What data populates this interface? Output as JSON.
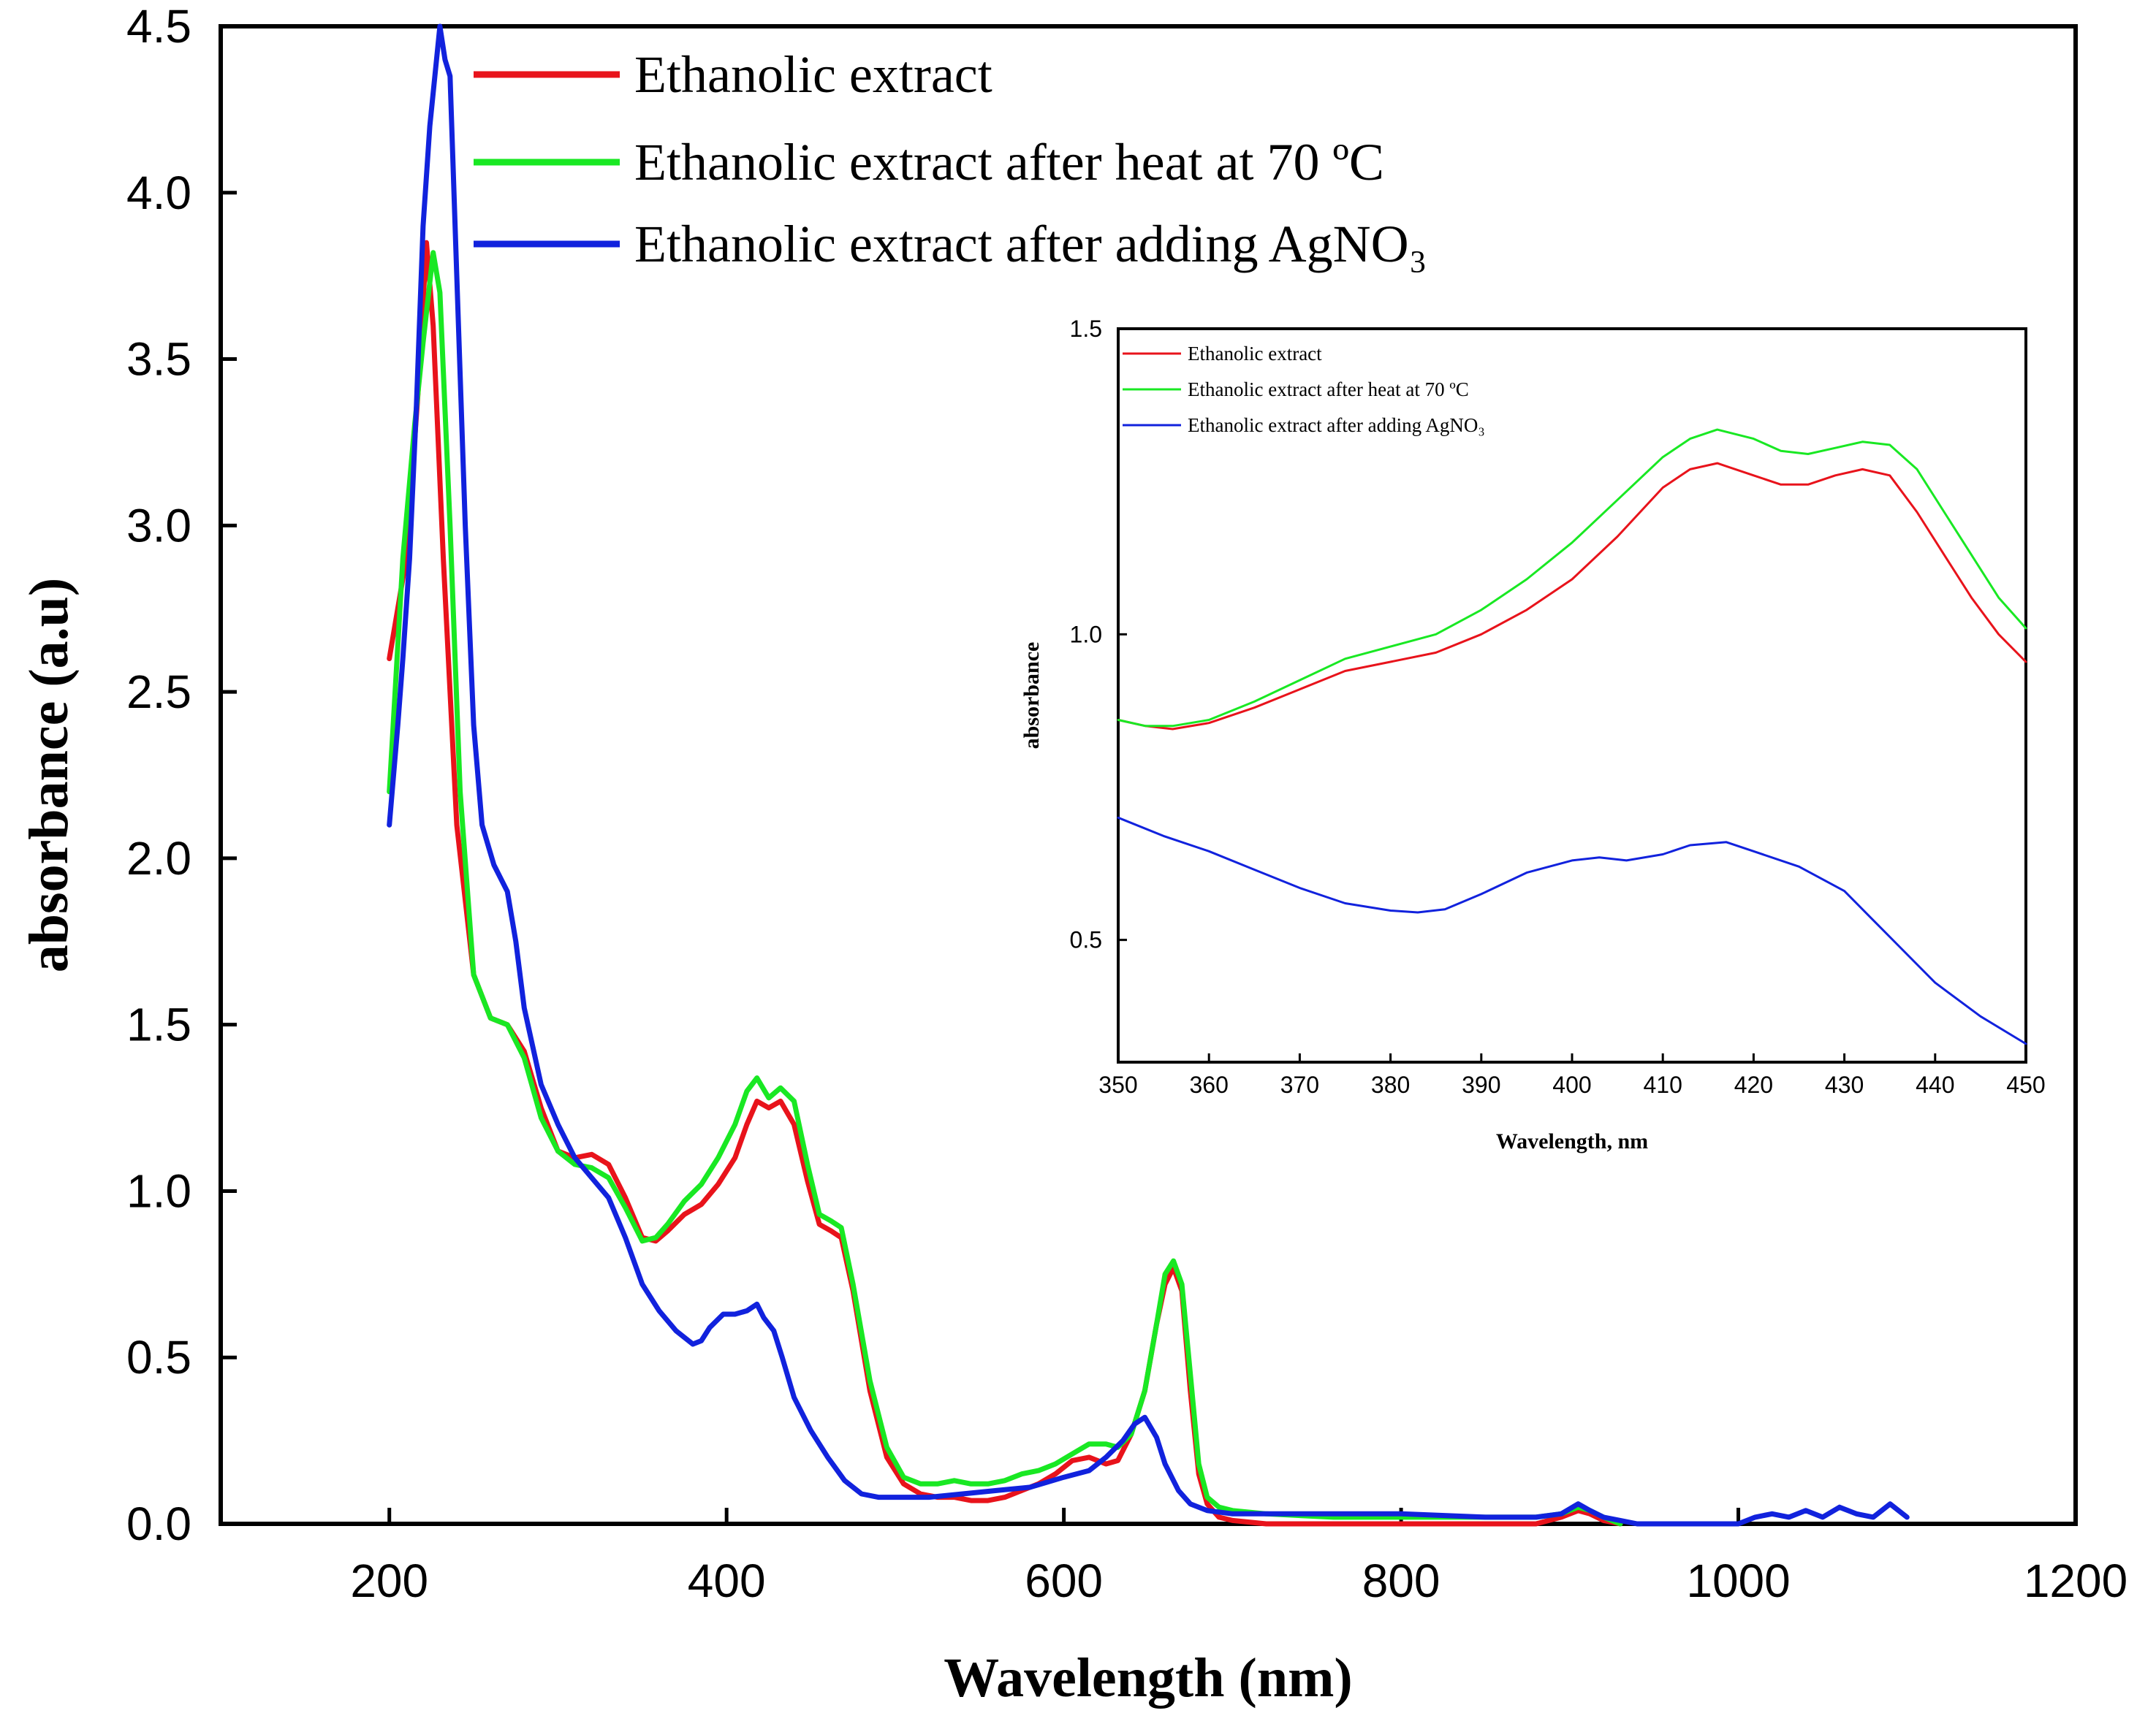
{
  "chart_data": [
    {
      "type": "line",
      "xlabel": "Wavelength (nm)",
      "ylabel": "absorbance (a.u)",
      "xlim": [
        100,
        1200
      ],
      "ylim": [
        0,
        4.5
      ],
      "xticks": [
        "200",
        "400",
        "600",
        "800",
        "1000",
        "1200"
      ],
      "yticks": [
        "0.0",
        "0.5",
        "1.0",
        "1.5",
        "2.0",
        "2.5",
        "3.0",
        "3.5",
        "4.0",
        "4.5"
      ],
      "legend_position": "top-center",
      "series": [
        {
          "name": "Ethanolic extract",
          "color": "#e8131b",
          "x": [
            200,
            210,
            217,
            222,
            226,
            232,
            240,
            250,
            260,
            270,
            280,
            290,
            300,
            310,
            320,
            330,
            340,
            350,
            358,
            365,
            375,
            385,
            395,
            405,
            412,
            418,
            425,
            432,
            440,
            448,
            455,
            462,
            468,
            475,
            485,
            495,
            505,
            515,
            525,
            535,
            545,
            555,
            565,
            575,
            585,
            595,
            605,
            615,
            625,
            632,
            640,
            648,
            655,
            660,
            665,
            670,
            675,
            680,
            685,
            692,
            700,
            720,
            760,
            800,
            850,
            880,
            895,
            905,
            912,
            920,
            930
          ],
          "y": [
            2.6,
            2.9,
            3.4,
            3.85,
            3.6,
            2.9,
            2.1,
            1.65,
            1.52,
            1.5,
            1.42,
            1.25,
            1.12,
            1.1,
            1.11,
            1.08,
            0.98,
            0.86,
            0.85,
            0.88,
            0.93,
            0.96,
            1.02,
            1.1,
            1.2,
            1.27,
            1.25,
            1.27,
            1.2,
            1.03,
            0.9,
            0.88,
            0.86,
            0.7,
            0.4,
            0.2,
            0.12,
            0.09,
            0.08,
            0.08,
            0.07,
            0.07,
            0.08,
            0.1,
            0.12,
            0.15,
            0.19,
            0.2,
            0.18,
            0.19,
            0.27,
            0.4,
            0.6,
            0.72,
            0.77,
            0.7,
            0.4,
            0.15,
            0.06,
            0.02,
            0.01,
            0.0,
            0.0,
            0.0,
            0.0,
            0.0,
            0.02,
            0.04,
            0.03,
            0.01,
            0.0
          ]
        },
        {
          "name": "Ethanolic extract after heat at 70 ºC",
          "color": "#19e823",
          "x": [
            200,
            208,
            215,
            220,
            226,
            230,
            236,
            242,
            250,
            260,
            270,
            280,
            290,
            300,
            310,
            320,
            330,
            340,
            350,
            358,
            365,
            375,
            385,
            395,
            405,
            412,
            418,
            425,
            432,
            440,
            448,
            455,
            462,
            468,
            475,
            485,
            495,
            505,
            515,
            525,
            535,
            545,
            555,
            565,
            575,
            585,
            595,
            605,
            615,
            625,
            632,
            640,
            648,
            655,
            660,
            665,
            670,
            675,
            680,
            685,
            692,
            700,
            720,
            760,
            800,
            850,
            880,
            895,
            905,
            912,
            920,
            930
          ],
          "y": [
            2.2,
            2.9,
            3.3,
            3.55,
            3.82,
            3.7,
            3.0,
            2.2,
            1.65,
            1.52,
            1.5,
            1.4,
            1.22,
            1.12,
            1.08,
            1.07,
            1.04,
            0.95,
            0.85,
            0.86,
            0.9,
            0.97,
            1.02,
            1.1,
            1.2,
            1.3,
            1.34,
            1.28,
            1.31,
            1.27,
            1.08,
            0.93,
            0.91,
            0.89,
            0.72,
            0.43,
            0.23,
            0.14,
            0.12,
            0.12,
            0.13,
            0.12,
            0.12,
            0.13,
            0.15,
            0.16,
            0.18,
            0.21,
            0.24,
            0.24,
            0.23,
            0.27,
            0.4,
            0.6,
            0.75,
            0.79,
            0.72,
            0.45,
            0.18,
            0.08,
            0.05,
            0.04,
            0.03,
            0.02,
            0.02,
            0.02,
            0.02,
            0.03,
            0.05,
            0.04,
            0.02,
            0.0
          ]
        },
        {
          "name": "Ethanolic extract after adding AgNO₃",
          "color": "#1122dd",
          "x": [
            200,
            205,
            208,
            212,
            216,
            220,
            224,
            227,
            230,
            233,
            236,
            240,
            245,
            250,
            255,
            262,
            270,
            275,
            280,
            290,
            300,
            310,
            320,
            330,
            340,
            350,
            360,
            370,
            380,
            385,
            390,
            398,
            405,
            412,
            418,
            422,
            428,
            433,
            440,
            450,
            460,
            470,
            480,
            490,
            500,
            520,
            540,
            560,
            580,
            600,
            615,
            625,
            635,
            642,
            648,
            655,
            660,
            668,
            675,
            685,
            700,
            750,
            800,
            850,
            880,
            895,
            905,
            912,
            920,
            930,
            940,
            1000,
            1010,
            1020,
            1030,
            1040,
            1050,
            1060,
            1070,
            1080,
            1090,
            1100
          ],
          "y": [
            2.1,
            2.4,
            2.6,
            2.9,
            3.35,
            3.9,
            4.2,
            4.35,
            4.5,
            4.4,
            4.35,
            3.75,
            3.0,
            2.4,
            2.1,
            1.98,
            1.9,
            1.75,
            1.55,
            1.32,
            1.2,
            1.1,
            1.04,
            0.98,
            0.86,
            0.72,
            0.64,
            0.58,
            0.54,
            0.55,
            0.59,
            0.63,
            0.63,
            0.64,
            0.66,
            0.62,
            0.58,
            0.5,
            0.38,
            0.28,
            0.2,
            0.13,
            0.09,
            0.08,
            0.08,
            0.08,
            0.09,
            0.1,
            0.11,
            0.14,
            0.16,
            0.2,
            0.25,
            0.3,
            0.32,
            0.26,
            0.18,
            0.1,
            0.06,
            0.04,
            0.03,
            0.03,
            0.03,
            0.02,
            0.02,
            0.03,
            0.06,
            0.04,
            0.02,
            0.01,
            0.0,
            0.0,
            0.02,
            0.03,
            0.02,
            0.04,
            0.02,
            0.05,
            0.03,
            0.02,
            0.06,
            0.02
          ]
        }
      ]
    },
    {
      "type": "line",
      "xlabel": "Wavelength, nm",
      "ylabel": "absorbance",
      "xlim": [
        350,
        450
      ],
      "ylim": [
        0.3,
        1.5
      ],
      "xticks": [
        "350",
        "360",
        "370",
        "380",
        "390",
        "400",
        "410",
        "420",
        "430",
        "440",
        "450"
      ],
      "yticks": [
        "0.5",
        "1.0",
        "1.5"
      ],
      "legend_position": "top-left",
      "series": [
        {
          "name": "Ethanolic extract",
          "color": "#e8131b",
          "x": [
            350,
            353,
            356,
            360,
            365,
            370,
            375,
            380,
            385,
            390,
            395,
            400,
            405,
            410,
            413,
            416,
            420,
            423,
            426,
            429,
            432,
            435,
            438,
            441,
            444,
            447,
            450
          ],
          "y": [
            0.86,
            0.85,
            0.845,
            0.855,
            0.88,
            0.91,
            0.94,
            0.955,
            0.97,
            1.0,
            1.04,
            1.09,
            1.16,
            1.24,
            1.27,
            1.28,
            1.26,
            1.245,
            1.245,
            1.26,
            1.27,
            1.26,
            1.2,
            1.13,
            1.06,
            1.0,
            0.955
          ]
        },
        {
          "name": "Ethanolic extract after heat at 70 ºC",
          "color": "#19e823",
          "x": [
            350,
            353,
            356,
            360,
            365,
            370,
            375,
            380,
            385,
            390,
            395,
            400,
            405,
            410,
            413,
            416,
            420,
            423,
            426,
            429,
            432,
            435,
            438,
            441,
            444,
            447,
            450
          ],
          "y": [
            0.86,
            0.85,
            0.85,
            0.86,
            0.89,
            0.925,
            0.96,
            0.98,
            1.0,
            1.04,
            1.09,
            1.15,
            1.22,
            1.29,
            1.32,
            1.335,
            1.32,
            1.3,
            1.295,
            1.305,
            1.315,
            1.31,
            1.27,
            1.2,
            1.13,
            1.06,
            1.01
          ]
        },
        {
          "name": "Ethanolic extract after adding AgNO₃",
          "color": "#1122dd",
          "x": [
            350,
            355,
            360,
            365,
            370,
            375,
            380,
            383,
            386,
            390,
            395,
            400,
            403,
            406,
            410,
            413,
            417,
            420,
            425,
            430,
            433,
            436,
            440,
            445,
            450
          ],
          "y": [
            0.7,
            0.67,
            0.645,
            0.615,
            0.585,
            0.56,
            0.548,
            0.545,
            0.55,
            0.575,
            0.61,
            0.63,
            0.635,
            0.63,
            0.64,
            0.655,
            0.66,
            0.645,
            0.62,
            0.58,
            0.535,
            0.49,
            0.43,
            0.375,
            0.33
          ]
        }
      ]
    }
  ]
}
